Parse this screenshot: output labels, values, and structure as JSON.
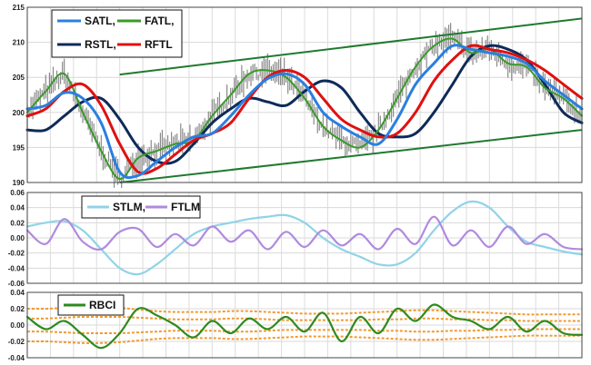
{
  "chart_data": [
    {
      "type": "line",
      "panel": "price",
      "ylim": [
        190,
        215
      ],
      "yticks": [
        "190",
        "195",
        "200",
        "205",
        "210",
        "215"
      ],
      "grid": true,
      "legend": {
        "placement": "top-left",
        "entries": [
          "SATL,",
          "FATL,",
          "RSTL,",
          "RFTL"
        ]
      },
      "x": [
        0,
        20,
        40,
        60,
        80,
        100,
        120,
        140,
        160,
        180,
        200,
        220,
        240,
        260,
        280,
        300,
        320,
        340,
        360,
        380,
        400,
        420,
        440,
        460,
        480,
        500,
        520,
        540,
        560,
        580,
        600
      ],
      "series": [
        {
          "name": "SATL,",
          "color": "#2a7fe0",
          "values": [
            200.5,
            201.0,
            202.8,
            202.0,
            198.5,
            191.5,
            191.0,
            193.0,
            195.0,
            196.5,
            197.0,
            199.5,
            202.5,
            204.8,
            205.5,
            204.0,
            200.0,
            198.0,
            196.5,
            195.5,
            199.0,
            204.0,
            207.0,
            209.5,
            209.0,
            208.5,
            208.0,
            207.0,
            204.5,
            202.5,
            200.5
          ]
        },
        {
          "name": "FATL,",
          "color": "#3a9a2a",
          "values": [
            200.0,
            203.0,
            205.5,
            200.0,
            194.5,
            190.5,
            193.5,
            194.5,
            195.5,
            196.0,
            199.5,
            202.5,
            205.5,
            206.0,
            205.0,
            202.0,
            198.0,
            196.0,
            195.0,
            197.5,
            202.0,
            206.5,
            209.5,
            210.5,
            208.5,
            209.0,
            207.0,
            206.5,
            203.5,
            202.0,
            199.5
          ]
        },
        {
          "name": "RSTL,",
          "color": "#0e2a5a",
          "values": [
            197.5,
            197.5,
            199.5,
            201.5,
            202.0,
            199.0,
            195.0,
            193.0,
            193.0,
            195.5,
            198.5,
            200.5,
            202.0,
            201.5,
            201.0,
            203.0,
            204.5,
            203.5,
            200.0,
            197.0,
            196.5,
            197.0,
            200.0,
            204.0,
            208.0,
            209.5,
            209.0,
            207.5,
            204.0,
            200.0,
            198.5
          ]
        },
        {
          "name": "RFTL",
          "color": "#e01010",
          "values": [
            199.5,
            200.5,
            203.0,
            204.0,
            201.0,
            195.5,
            191.5,
            192.0,
            194.0,
            196.0,
            197.0,
            198.5,
            202.0,
            205.0,
            206.0,
            205.0,
            202.0,
            199.0,
            197.5,
            196.5,
            197.0,
            200.0,
            204.5,
            207.5,
            209.5,
            209.0,
            208.5,
            207.5,
            206.0,
            204.0,
            202.0
          ]
        }
      ],
      "annotations": [
        {
          "kind": "trend-channel-upper",
          "color": "#1e7a2e",
          "from": [
            100,
            205.4
          ],
          "to": [
            600,
            213.4
          ]
        },
        {
          "kind": "trend-channel-lower",
          "color": "#1e7a2e",
          "from": [
            100,
            190.0
          ],
          "to": [
            600,
            197.5
          ]
        }
      ]
    },
    {
      "type": "line",
      "panel": "momentum",
      "ylim": [
        -0.06,
        0.06
      ],
      "yticks": [
        "-0.06",
        "-0.04",
        "-0.02",
        "0.00",
        "0.02",
        "0.04",
        "0.06"
      ],
      "grid": true,
      "legend": {
        "placement": "top-center",
        "entries": [
          "STLM,",
          "FTLM"
        ]
      },
      "x": [
        0,
        20,
        40,
        60,
        80,
        100,
        120,
        140,
        160,
        180,
        200,
        220,
        240,
        260,
        280,
        300,
        320,
        340,
        360,
        380,
        400,
        420,
        440,
        460,
        480,
        500,
        520,
        540,
        560,
        580,
        600
      ],
      "series": [
        {
          "name": "STLM,",
          "color": "#8fd4e8",
          "values": [
            0.015,
            0.02,
            0.022,
            0.01,
            -0.015,
            -0.04,
            -0.048,
            -0.035,
            -0.015,
            0.005,
            0.015,
            0.02,
            0.025,
            0.028,
            0.03,
            0.02,
            0.0,
            -0.015,
            -0.025,
            -0.035,
            -0.035,
            -0.02,
            0.01,
            0.035,
            0.048,
            0.04,
            0.015,
            -0.005,
            -0.012,
            -0.018,
            -0.022
          ]
        },
        {
          "name": "FTLM",
          "color": "#b08ae0",
          "values": [
            0.01,
            -0.008,
            0.025,
            -0.005,
            -0.015,
            0.008,
            0.012,
            -0.012,
            0.005,
            -0.01,
            0.015,
            -0.005,
            0.01,
            -0.015,
            0.008,
            -0.012,
            0.01,
            -0.01,
            0.005,
            -0.015,
            0.012,
            -0.008,
            0.028,
            -0.01,
            0.01,
            -0.012,
            0.015,
            -0.008,
            0.005,
            -0.012,
            -0.015
          ]
        }
      ]
    },
    {
      "type": "line",
      "panel": "cycle",
      "ylim": [
        -0.04,
        0.04
      ],
      "yticks": [
        "-0.04",
        "-0.02",
        "0.00",
        "0.02",
        "0.04"
      ],
      "grid": true,
      "legend": {
        "placement": "top-left",
        "entries": [
          "RBCI"
        ]
      },
      "x": [
        0,
        20,
        40,
        60,
        80,
        100,
        120,
        140,
        160,
        180,
        200,
        220,
        240,
        260,
        280,
        300,
        320,
        340,
        360,
        380,
        400,
        420,
        440,
        460,
        480,
        500,
        520,
        540,
        560,
        580,
        600
      ],
      "series": [
        {
          "name": "RBCI",
          "color": "#2e8a1e",
          "values": [
            0.01,
            -0.005,
            0.005,
            -0.012,
            -0.028,
            -0.01,
            0.02,
            0.012,
            0.0,
            -0.015,
            0.005,
            -0.01,
            0.008,
            -0.005,
            0.01,
            -0.008,
            0.015,
            -0.02,
            0.01,
            -0.01,
            0.02,
            0.005,
            0.025,
            0.01,
            0.005,
            -0.005,
            0.01,
            -0.008,
            0.005,
            -0.01,
            -0.012
          ]
        }
      ],
      "bands": {
        "color": "#f09a30",
        "upper_outer": [
          0.02,
          0.02,
          0.021,
          0.022,
          0.022,
          0.021,
          0.019,
          0.017,
          0.016,
          0.016,
          0.016,
          0.017,
          0.017,
          0.016,
          0.015,
          0.014,
          0.014,
          0.014,
          0.015,
          0.016,
          0.017,
          0.018,
          0.018,
          0.017,
          0.016,
          0.015,
          0.014,
          0.013,
          0.013,
          0.013,
          0.013
        ],
        "upper_inner": [
          0.008,
          0.008,
          0.009,
          0.01,
          0.01,
          0.01,
          0.009,
          0.008,
          0.007,
          0.007,
          0.007,
          0.008,
          0.008,
          0.007,
          0.006,
          0.006,
          0.006,
          0.006,
          0.006,
          0.007,
          0.007,
          0.008,
          0.008,
          0.007,
          0.007,
          0.006,
          0.006,
          0.005,
          0.005,
          0.005,
          0.005
        ],
        "lower_inner": [
          -0.008,
          -0.008,
          -0.009,
          -0.01,
          -0.01,
          -0.01,
          -0.009,
          -0.008,
          -0.007,
          -0.007,
          -0.007,
          -0.008,
          -0.008,
          -0.007,
          -0.006,
          -0.006,
          -0.006,
          -0.006,
          -0.006,
          -0.007,
          -0.007,
          -0.008,
          -0.008,
          -0.007,
          -0.007,
          -0.006,
          -0.006,
          -0.005,
          -0.005,
          -0.005,
          -0.005
        ],
        "lower_outer": [
          -0.02,
          -0.02,
          -0.021,
          -0.022,
          -0.022,
          -0.021,
          -0.019,
          -0.017,
          -0.016,
          -0.016,
          -0.016,
          -0.017,
          -0.017,
          -0.016,
          -0.015,
          -0.014,
          -0.014,
          -0.014,
          -0.015,
          -0.016,
          -0.017,
          -0.018,
          -0.018,
          -0.017,
          -0.016,
          -0.015,
          -0.014,
          -0.013,
          -0.013,
          -0.013,
          -0.013
        ]
      }
    }
  ]
}
